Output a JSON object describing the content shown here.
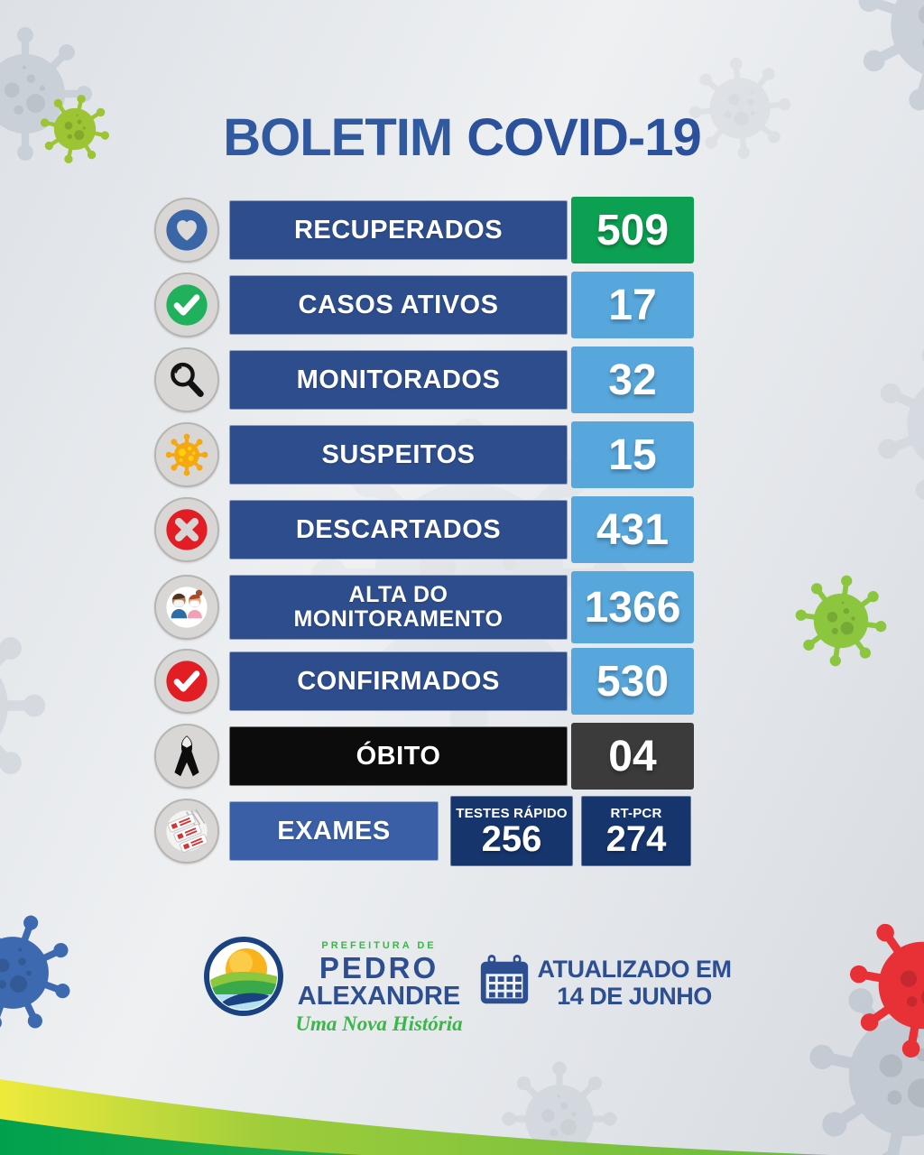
{
  "title": {
    "part1": "BOLETIM",
    "part2": "COVID-19"
  },
  "rows": [
    {
      "id": "recuperados",
      "icon": "heart-icon",
      "label": "RECUPERADOS",
      "value": "509",
      "label_bg": "#2e4d8d",
      "value_bg": "#0ca152"
    },
    {
      "id": "casos-ativos",
      "icon": "check-green-icon",
      "label": "CASOS ATIVOS",
      "value": "17",
      "label_bg": "#2e4d8d",
      "value_bg": "#58a7dc"
    },
    {
      "id": "monitorados",
      "icon": "magnifier-icon",
      "label": "MONITORADOS",
      "value": "32",
      "label_bg": "#2e4d8d",
      "value_bg": "#58a7dc"
    },
    {
      "id": "suspeitos",
      "icon": "virus-orange-icon",
      "label": "SUSPEITOS",
      "value": "15",
      "label_bg": "#2e4d8d",
      "value_bg": "#58a7dc"
    },
    {
      "id": "descartados",
      "icon": "x-red-icon",
      "label": "DESCARTADOS",
      "value": "431",
      "label_bg": "#2e4d8d",
      "value_bg": "#58a7dc"
    },
    {
      "id": "alta-monitoramento",
      "icon": "people-masks-icon",
      "label": "ALTA DO MONITORAMENTO",
      "label_lines": [
        "ALTA DO",
        "MONITORAMENTO"
      ],
      "value": "1366",
      "label_bg": "#2e4d8d",
      "value_bg": "#58a7dc"
    },
    {
      "id": "confirmados",
      "icon": "check-red-icon",
      "label": "CONFIRMADOS",
      "value": "530",
      "label_bg": "#2e4d8d",
      "value_bg": "#58a7dc"
    },
    {
      "id": "obito",
      "icon": "mourning-ribbon-icon",
      "label": "ÓBITO",
      "value": "04",
      "label_bg": "#0c0c0c",
      "value_bg": "#3b3b3b"
    }
  ],
  "exames": {
    "icon": "covid-test-icon",
    "label": "EXAMES",
    "label_bg": "#3a5fa6",
    "box_bg": "#16356d",
    "boxes": [
      {
        "label": "TESTES RÁPIDO",
        "value": "256"
      },
      {
        "label": "RT-PCR",
        "value": "274"
      }
    ]
  },
  "footer": {
    "brand": {
      "line1": "PREFEITURA DE",
      "line2": "PEDRO",
      "line3": "ALEXANDRE",
      "tagline": "Uma Nova História"
    },
    "updated": {
      "line1": "ATUALIZADO EM",
      "line2": "14 DE JUNHO"
    }
  },
  "colors": {
    "bar_navy": "#2e4d8d",
    "value_blue": "#58a7dc",
    "value_green": "#0ca152",
    "obito_black": "#0c0c0c",
    "obito_gray": "#3b3b3b",
    "exames_blue": "#3a5fa6",
    "test_box_navy": "#16356d",
    "title_blue": "#2e5ba8",
    "footer_blue": "#2d4f92",
    "brand_green": "#3cb54a"
  },
  "chart_data": {
    "type": "table",
    "title": "BOLETIM COVID-19",
    "categories": [
      "RECUPERADOS",
      "CASOS ATIVOS",
      "MONITORADOS",
      "SUSPEITOS",
      "DESCARTADOS",
      "ALTA DO MONITORAMENTO",
      "CONFIRMADOS",
      "ÓBITO",
      "EXAMES TESTES RÁPIDO",
      "EXAMES RT-PCR"
    ],
    "values": [
      509,
      17,
      32,
      15,
      431,
      1366,
      530,
      4,
      256,
      274
    ],
    "annotations": [
      "ATUALIZADO EM 14 DE JUNHO",
      "PREFEITURA DE PEDRO ALEXANDRE",
      "Uma Nova História"
    ]
  }
}
